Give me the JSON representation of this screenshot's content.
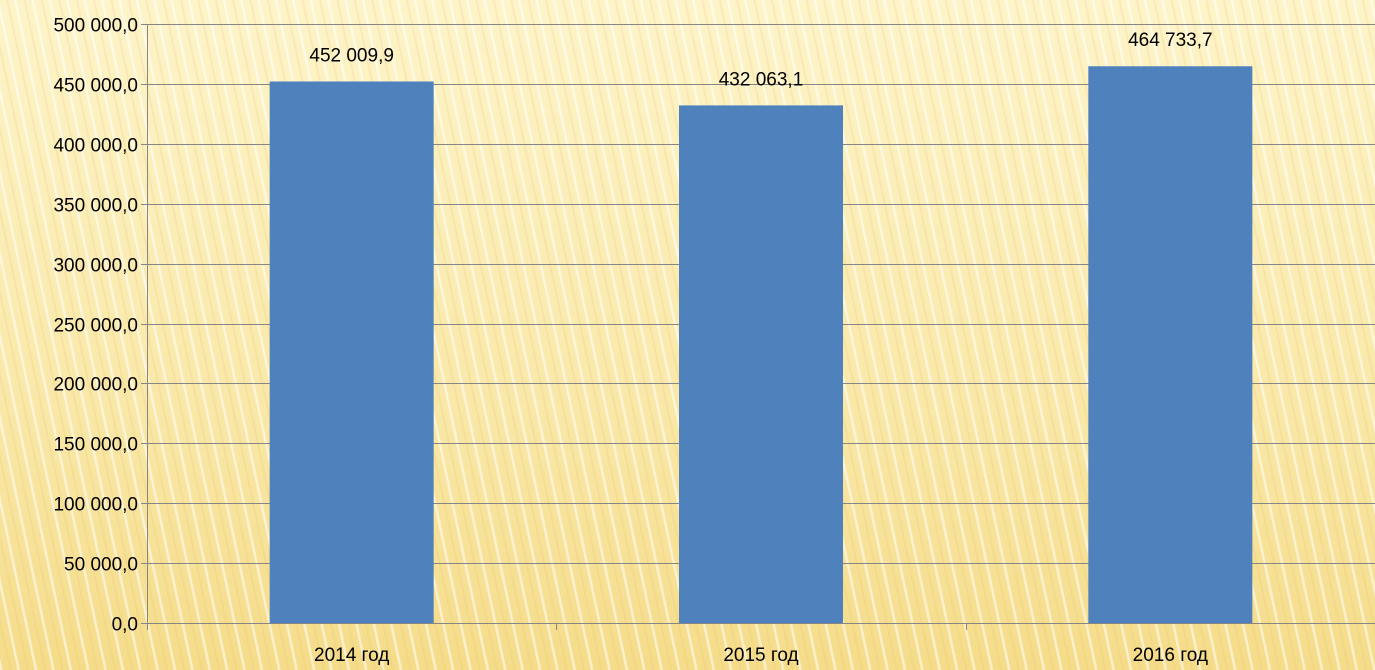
{
  "chart_data": {
    "type": "bar",
    "title": "",
    "xlabel": "",
    "ylabel": "",
    "categories": [
      "2014 год",
      "2015 год",
      "2016 год"
    ],
    "values": [
      452009.9,
      432063.1,
      464733.7
    ],
    "value_labels": [
      "452 009,9",
      "432 063,1",
      "464 733,7"
    ],
    "ylim": [
      0,
      500000
    ],
    "y_ticks": [
      0,
      50000,
      100000,
      150000,
      200000,
      250000,
      300000,
      350000,
      400000,
      450000,
      500000
    ],
    "y_tick_labels": [
      "0,0",
      "50 000,0",
      "100 000,0",
      "150 000,0",
      "200 000,0",
      "250 000,0",
      "300 000,0",
      "350 000,0",
      "400 000,0",
      "450 000,0",
      "500 000,0"
    ],
    "grid": true,
    "legend": "none",
    "colors": {
      "bar": "#4f81bd",
      "grid": "#868686",
      "axis": "#868686"
    }
  }
}
